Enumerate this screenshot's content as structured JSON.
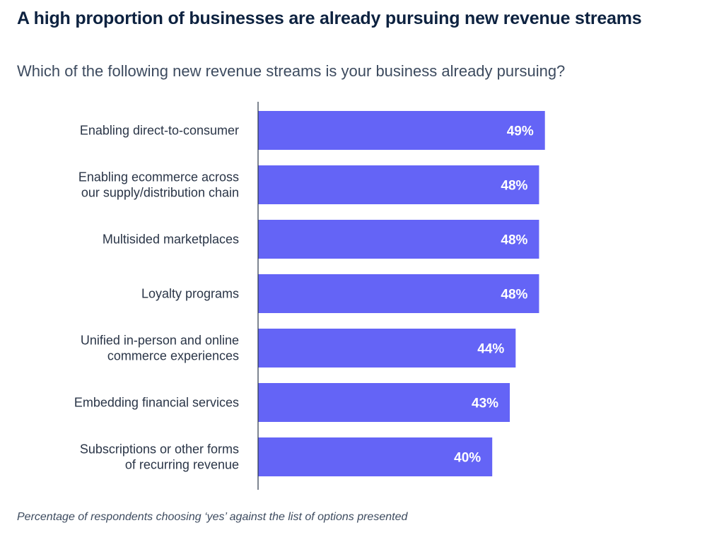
{
  "title": "A high proportion of businesses are already pursuing new revenue streams",
  "subtitle": "Which of the following new revenue streams is your business already pursuing?",
  "footnote": "Percentage of respondents choosing ‘yes’ against the list of options presented",
  "colors": {
    "bar": "#6464f6",
    "bar_label": "#ffffff",
    "category_label": "#2a3547",
    "axis": "#2a3547"
  },
  "chart_data": {
    "type": "bar",
    "orientation": "horizontal",
    "categories": [
      [
        "Enabling direct-to-consumer"
      ],
      [
        "Enabling ecommerce across",
        "our supply/distribution chain"
      ],
      [
        "Multisided marketplaces"
      ],
      [
        "Loyalty programs"
      ],
      [
        "Unified in-person and online",
        "commerce experiences"
      ],
      [
        "Embedding financial services"
      ],
      [
        "Subscriptions or other forms",
        "of recurring revenue"
      ]
    ],
    "values": [
      49,
      48,
      48,
      48,
      44,
      43,
      40
    ],
    "value_labels": [
      "49%",
      "48%",
      "48%",
      "48%",
      "44%",
      "43%",
      "40%"
    ],
    "unit": "%",
    "xlim": [
      0,
      100
    ],
    "grid": false,
    "legend": "none"
  }
}
